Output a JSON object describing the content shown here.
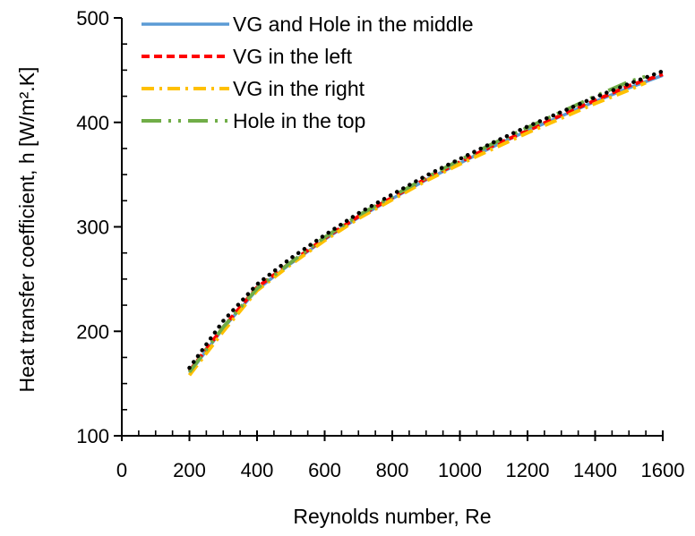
{
  "chart_data": {
    "type": "line",
    "title": "",
    "xlabel": "Reynolds number, Re",
    "ylabel": "Heat transfer coefficient, h [W/m².K]",
    "xlim": [
      0,
      1600
    ],
    "ylim": [
      100,
      500
    ],
    "x_ticks": [
      0,
      200,
      400,
      600,
      800,
      1000,
      1200,
      1400,
      1600
    ],
    "y_ticks": [
      100,
      200,
      300,
      400,
      500
    ],
    "x_minor_step": 50,
    "y_minor_step": 25,
    "grid": false,
    "legend_position": "top-left",
    "series": [
      {
        "name": "VG and Hole in the middle",
        "color": "#5b9bd5",
        "style": "solid",
        "x": [
          200,
          300,
          400,
          500,
          600,
          700,
          800,
          900,
          1000,
          1100,
          1200,
          1300,
          1400,
          1500,
          1600
        ],
        "y": [
          160,
          203,
          240,
          265,
          288,
          309,
          327,
          345,
          361,
          377,
          392,
          406,
          420,
          433,
          445
        ]
      },
      {
        "name": "VG in the left",
        "color": "#ff0000",
        "style": "dashed",
        "x": [
          200,
          300,
          400,
          500,
          600,
          700,
          800,
          900,
          1000,
          1100,
          1200,
          1300,
          1400,
          1500,
          1600
        ],
        "y": [
          162,
          204,
          242,
          266,
          289,
          310,
          328,
          346,
          362,
          378,
          392,
          407,
          421,
          435,
          446
        ]
      },
      {
        "name": "VG in the right",
        "color": "#ffc000",
        "style": "dashdot",
        "x": [
          200,
          300,
          400,
          500,
          600,
          700,
          800,
          900,
          1000,
          1100,
          1200,
          1300,
          1400,
          1500,
          1550
        ],
        "y": [
          158,
          200,
          239,
          264,
          287,
          308,
          326,
          344,
          360,
          375,
          390,
          404,
          418,
          431,
          438
        ]
      },
      {
        "name": "Hole in the top",
        "color": "#70ad47",
        "style": "longdashdot",
        "x": [
          200,
          300,
          400,
          500,
          600,
          700,
          800,
          900,
          1000,
          1100,
          1200,
          1300,
          1400,
          1500,
          1550
        ],
        "y": [
          161,
          204,
          241,
          266,
          290,
          311,
          329,
          347,
          364,
          380,
          395,
          410,
          425,
          439,
          444
        ]
      },
      {
        "name": "",
        "color": "#000000",
        "style": "dotted",
        "x": [
          200,
          300,
          400,
          500,
          600,
          700,
          800,
          900,
          1000,
          1100,
          1200,
          1300,
          1400,
          1500,
          1600
        ],
        "y": [
          165,
          210,
          245,
          270,
          292,
          313,
          331,
          349,
          365,
          381,
          396,
          410,
          424,
          437,
          449
        ]
      }
    ]
  }
}
